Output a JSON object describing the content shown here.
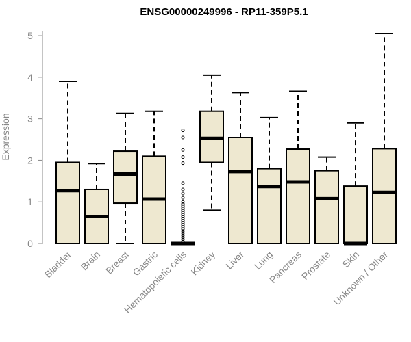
{
  "chart_data": {
    "type": "boxplot",
    "title": "ENSG00000249996 - RP11-359P5.1",
    "ylabel": "Expression",
    "xlabel": "",
    "ylim": [
      0,
      5.1
    ],
    "yticks": [
      "0",
      "1",
      "2",
      "3",
      "4",
      "5"
    ],
    "grid": false,
    "colors": {
      "box_fill": "#eee8d0",
      "stroke": "#000000",
      "axis": "#888888"
    },
    "categories": [
      "Bladder",
      "Brain",
      "Breast",
      "Gastric",
      "Hematopoietic cells",
      "Kidney",
      "Liver",
      "Lung",
      "Pancreas",
      "Prostate",
      "Skin",
      "Unknown / Other"
    ],
    "boxes": [
      {
        "name": "Bladder",
        "min": 0,
        "q1": 0,
        "median": 1.27,
        "q3": 1.95,
        "max": 3.9,
        "outliers": []
      },
      {
        "name": "Brain",
        "min": 0,
        "q1": 0,
        "median": 0.65,
        "q3": 1.3,
        "max": 1.92,
        "outliers": []
      },
      {
        "name": "Breast",
        "min": 0,
        "q1": 0.97,
        "median": 1.67,
        "q3": 2.22,
        "max": 3.13,
        "outliers": []
      },
      {
        "name": "Gastric",
        "min": 0,
        "q1": 0,
        "median": 1.07,
        "q3": 2.1,
        "max": 3.18,
        "outliers": []
      },
      {
        "name": "Hematopoietic cells",
        "min": 0,
        "q1": 0,
        "median": 0,
        "q3": 0,
        "max": 0,
        "outliers": [
          2.72,
          2.55,
          2.25,
          2.08,
          1.93,
          1.45,
          1.3,
          1.2,
          1.1,
          1.0,
          0.95,
          0.9,
          0.85,
          0.8,
          0.75,
          0.7,
          0.65,
          0.6,
          0.55,
          0.5,
          0.45,
          0.4,
          0.35,
          0.3,
          0.25,
          0.2,
          0.15,
          0.1,
          0.05
        ]
      },
      {
        "name": "Kidney",
        "min": 0.8,
        "q1": 1.95,
        "median": 2.53,
        "q3": 3.18,
        "max": 4.05,
        "outliers": []
      },
      {
        "name": "Liver",
        "min": 0,
        "q1": 0,
        "median": 1.73,
        "q3": 2.55,
        "max": 3.63,
        "outliers": []
      },
      {
        "name": "Lung",
        "min": 0,
        "q1": 0,
        "median": 1.37,
        "q3": 1.8,
        "max": 3.03,
        "outliers": []
      },
      {
        "name": "Pancreas",
        "min": 0,
        "q1": 0,
        "median": 1.48,
        "q3": 2.27,
        "max": 3.66,
        "outliers": []
      },
      {
        "name": "Prostate",
        "min": 0,
        "q1": 0,
        "median": 1.08,
        "q3": 1.75,
        "max": 2.08,
        "outliers": []
      },
      {
        "name": "Skin",
        "min": 0,
        "q1": 0,
        "median": 0,
        "q3": 1.38,
        "max": 2.9,
        "outliers": []
      },
      {
        "name": "Unknown / Other",
        "min": 0,
        "q1": 0,
        "median": 1.23,
        "q3": 2.28,
        "max": 5.05,
        "outliers": []
      }
    ]
  }
}
